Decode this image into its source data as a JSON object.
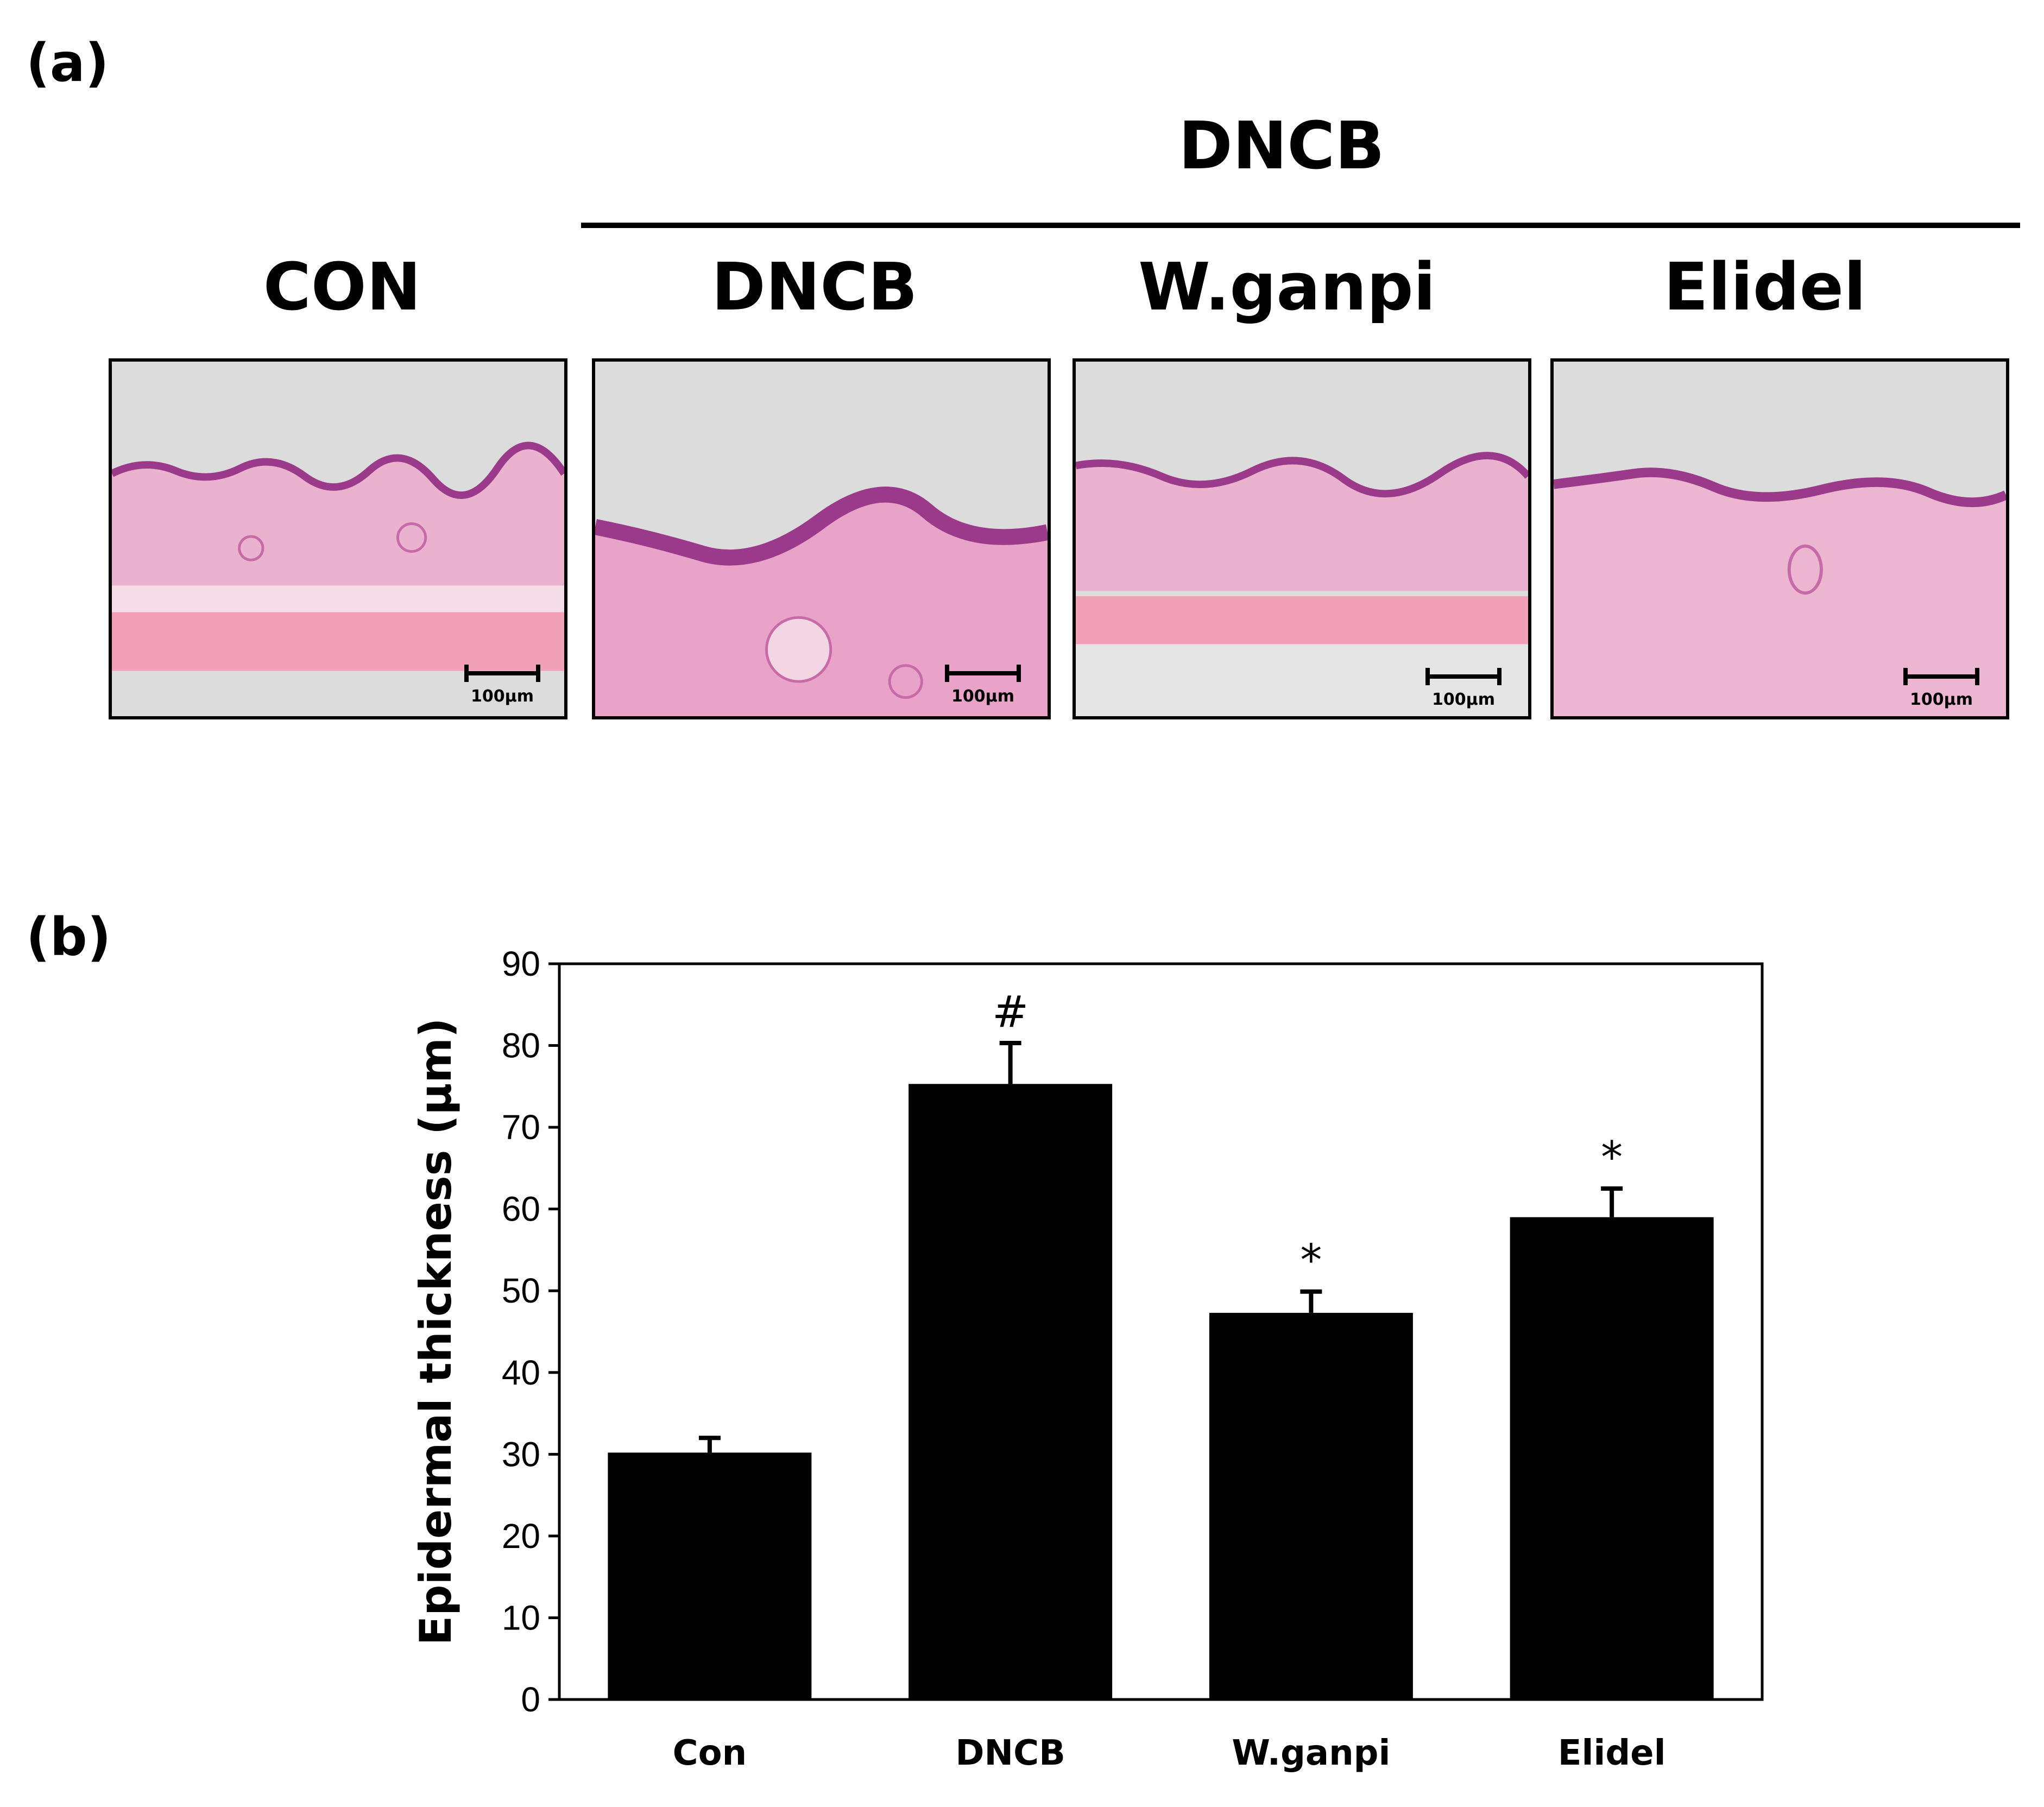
{
  "panel_a": {
    "label": "(a)",
    "group_title": "DNCB",
    "columns": [
      "CON",
      "DNCB",
      "W.ganpi",
      "Elidel"
    ],
    "scale_bar_label": "100μm",
    "colors": {
      "tissue": "#e9a3c9",
      "epidermis": "#9b3a8a",
      "muscle": "#f2a0b8",
      "background": "#dcdcdc"
    }
  },
  "panel_b": {
    "label": "(b)"
  },
  "chart_data": {
    "type": "bar",
    "categories": [
      "Con",
      "DNCB",
      "W.ganpi",
      "Elidel"
    ],
    "values": [
      30.2,
      75.3,
      47.3,
      59.0
    ],
    "errors": [
      1.8,
      5.0,
      2.6,
      3.5
    ],
    "annotations": [
      "",
      "#",
      "*",
      "*"
    ],
    "ylabel": "Epidermal thickness (μm)",
    "xlabel": "",
    "ylim": [
      0,
      90
    ],
    "yticks": [
      0,
      10,
      20,
      30,
      40,
      50,
      60,
      70,
      80,
      90
    ],
    "bar_color": "#000000",
    "grid": false
  }
}
